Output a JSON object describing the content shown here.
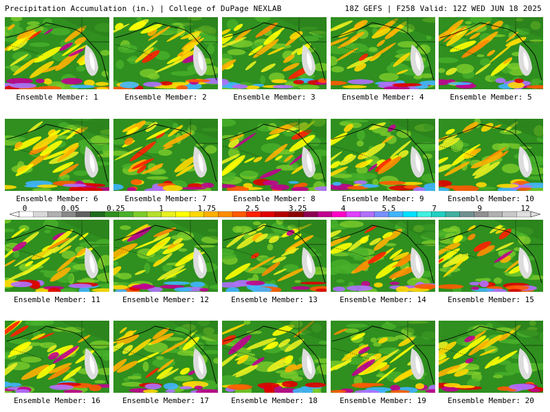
{
  "header": {
    "left": "Precipitation Accumulation (in.) | College of DuPage NEXLAB",
    "right": "18Z GEFS | F258 Valid: 12Z WED JUN 18 2025"
  },
  "captions": [
    "Ensemble Member: 1",
    "Ensemble Member: 2",
    "Ensemble Member: 3",
    "Ensemble Member: 4",
    "Ensemble Member: 5",
    "Ensemble Member: 6",
    "Ensemble Member: 7",
    "Ensemble Member: 8",
    "Ensemble Member: 9",
    "Ensemble Member: 10",
    "Ensemble Member: 11",
    "Ensemble Member: 12",
    "Ensemble Member: 13",
    "Ensemble Member: 14",
    "Ensemble Member: 15",
    "Ensemble Member: 16",
    "Ensemble Member: 17",
    "Ensemble Member: 18",
    "Ensemble Member: 19",
    "Ensemble Member: 20"
  ],
  "legend": {
    "ticks": [
      "0",
      "0.05",
      "0.25",
      "1",
      "1.75",
      "2.5",
      "3.25",
      "4",
      "5.5",
      "7",
      "9",
      "12"
    ],
    "colors": [
      "#ffffff",
      "#d8d8d8",
      "#b0b0b0",
      "#888888",
      "#606060",
      "#1e6b1e",
      "#2f8f1f",
      "#49b02a",
      "#7dcc2a",
      "#b4e02a",
      "#e8f020",
      "#ffff00",
      "#ffd800",
      "#ffb000",
      "#ff8c00",
      "#ff5a00",
      "#ff2000",
      "#e00000",
      "#b40000",
      "#8c0000",
      "#8c0050",
      "#c00090",
      "#ff00c8",
      "#e040ff",
      "#b070ff",
      "#7890ff",
      "#40b4ff",
      "#00e0ff",
      "#40f0e0",
      "#20d0c0",
      "#40b0a0",
      "#709090",
      "#909090",
      "#b0b0b0",
      "#c8c8c8",
      "#e0e0e0"
    ]
  }
}
